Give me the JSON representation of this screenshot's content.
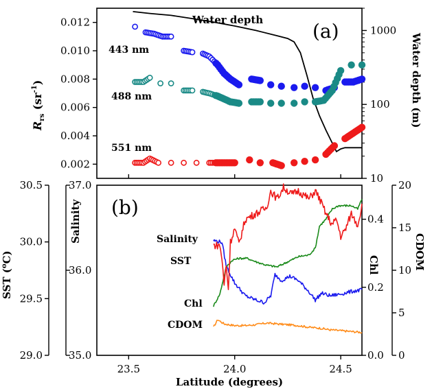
{
  "chart_data": [
    {
      "panel_label": "(a)",
      "type": "scatter",
      "xlabel": "",
      "x_ticks": [
        "23.5",
        "24.0",
        "24.5"
      ],
      "ylabel_left": "R",
      "ylabel_left_sub": "rs",
      "ylabel_left_unit_a": " (sr",
      "ylabel_left_unit_exp": "-1",
      "ylabel_left_unit_b": ")",
      "ylim_left": [
        0.001,
        0.013
      ],
      "y_ticks_left": [
        "0.002",
        "0.004",
        "0.006",
        "0.008",
        "0.010",
        "0.012"
      ],
      "ylabel_right": "Water depth (m)",
      "yscale_right": "log",
      "ylim_right": [
        10,
        2000
      ],
      "y_ticks_right": [
        "10",
        "100",
        "1000"
      ],
      "series_labels": {
        "depth": "Water depth",
        "s443": "443 nm",
        "s488": "488 nm",
        "s551": "551 nm"
      },
      "colors": {
        "s443": "#1a1aee",
        "s488": "#1a8a86",
        "s551": "#ee1a1a",
        "depth": "#000000"
      },
      "series": [
        {
          "id": "s443",
          "name": "443 nm",
          "points": [
            [
              23.53,
              0.0117
            ],
            [
              23.58,
              0.0113
            ],
            [
              23.62,
              0.0112
            ],
            [
              23.66,
              0.011
            ],
            [
              23.7,
              0.011
            ],
            [
              23.76,
              0.01
            ],
            [
              23.8,
              0.0099
            ],
            [
              23.85,
              0.0098
            ],
            [
              23.88,
              0.0096
            ],
            [
              23.92,
              0.009
            ],
            [
              23.95,
              0.0084
            ],
            [
              23.98,
              0.008
            ],
            [
              24.02,
              0.0076
            ],
            [
              24.08,
              0.008
            ],
            [
              24.12,
              0.0079
            ],
            [
              24.17,
              0.0076
            ],
            [
              24.22,
              0.0075
            ],
            [
              24.28,
              0.0074
            ],
            [
              24.33,
              0.0075
            ],
            [
              24.38,
              0.0074
            ],
            [
              24.43,
              0.0072
            ],
            [
              24.47,
              0.0074
            ],
            [
              24.52,
              0.0078
            ],
            [
              24.56,
              0.0078
            ],
            [
              24.6,
              0.008
            ]
          ]
        },
        {
          "id": "s488",
          "name": "488 nm",
          "points": [
            [
              23.53,
              0.0078
            ],
            [
              23.57,
              0.0078
            ],
            [
              23.6,
              0.0081
            ],
            [
              23.65,
              0.0077
            ],
            [
              23.7,
              0.0077
            ],
            [
              23.76,
              0.0072
            ],
            [
              23.8,
              0.0072
            ],
            [
              23.85,
              0.0071
            ],
            [
              23.88,
              0.007
            ],
            [
              23.92,
              0.0068
            ],
            [
              23.95,
              0.0066
            ],
            [
              23.98,
              0.0064
            ],
            [
              24.02,
              0.0063
            ],
            [
              24.08,
              0.0064
            ],
            [
              24.12,
              0.0064
            ],
            [
              24.17,
              0.0063
            ],
            [
              24.22,
              0.0063
            ],
            [
              24.28,
              0.0063
            ],
            [
              24.33,
              0.0064
            ],
            [
              24.38,
              0.0064
            ],
            [
              24.42,
              0.0065
            ],
            [
              24.46,
              0.0072
            ],
            [
              24.5,
              0.0086
            ],
            [
              24.55,
              0.009
            ],
            [
              24.6,
              0.009
            ]
          ]
        },
        {
          "id": "s551",
          "name": "551 nm",
          "points": [
            [
              23.53,
              0.0021
            ],
            [
              23.57,
              0.0021
            ],
            [
              23.6,
              0.0024
            ],
            [
              23.64,
              0.0021
            ],
            [
              23.7,
              0.0021
            ],
            [
              23.76,
              0.0021
            ],
            [
              23.82,
              0.0021
            ],
            [
              23.88,
              0.0021
            ],
            [
              23.92,
              0.0021
            ],
            [
              23.96,
              0.0021
            ],
            [
              24.0,
              0.0021
            ],
            [
              24.07,
              0.0023
            ],
            [
              24.12,
              0.0021
            ],
            [
              24.18,
              0.0021
            ],
            [
              24.22,
              0.0019
            ],
            [
              24.28,
              0.0021
            ],
            [
              24.33,
              0.0022
            ],
            [
              24.38,
              0.0023
            ],
            [
              24.43,
              0.0027
            ],
            [
              24.47,
              0.0033
            ],
            [
              24.52,
              0.0038
            ],
            [
              24.56,
              0.0042
            ],
            [
              24.6,
              0.0046
            ]
          ]
        },
        {
          "id": "depth",
          "name": "Water depth",
          "type": "line",
          "points": [
            [
              23.52,
              1800
            ],
            [
              23.6,
              1700
            ],
            [
              23.7,
              1600
            ],
            [
              23.8,
              1450
            ],
            [
              23.9,
              1300
            ],
            [
              24.0,
              1150
            ],
            [
              24.1,
              1000
            ],
            [
              24.2,
              850
            ],
            [
              24.25,
              780
            ],
            [
              24.28,
              700
            ],
            [
              24.31,
              500
            ],
            [
              24.34,
              250
            ],
            [
              24.37,
              120
            ],
            [
              24.4,
              70
            ],
            [
              24.43,
              45
            ],
            [
              24.46,
              30
            ],
            [
              24.48,
              23
            ],
            [
              24.5,
              25
            ],
            [
              24.52,
              26
            ],
            [
              24.56,
              26
            ],
            [
              24.6,
              26
            ]
          ]
        }
      ]
    },
    {
      "panel_label": "(b)",
      "type": "line",
      "xlabel": "Latitude (degrees)",
      "x_ticks": [
        "23.5",
        "24.0",
        "24.5"
      ],
      "xlim": [
        23.35,
        24.6
      ],
      "axes": {
        "sst": {
          "label": "SST (",
          "label_exp": "o",
          "label_end": "C)",
          "ylim": [
            29.0,
            30.5
          ],
          "ticks": [
            "29.0",
            "29.5",
            "30.0",
            "30.5"
          ]
        },
        "salinity": {
          "label": "Salinity",
          "ylim": [
            35.0,
            37.0
          ],
          "ticks": [
            "35.0",
            "36.0",
            "37.0"
          ]
        },
        "chl": {
          "label": "Chl",
          "ylim": [
            0.0,
            0.5
          ],
          "ticks": [
            "0.0",
            "0.2",
            "0.4"
          ]
        },
        "cdom": {
          "label": "CDOM",
          "ylim": [
            0,
            20
          ],
          "ticks": [
            "0",
            "5",
            "10",
            "15",
            "20"
          ]
        }
      },
      "series_labels": {
        "salinity": "Salinity",
        "sst": "SST",
        "chl": "Chl",
        "cdom": "CDOM"
      },
      "colors": {
        "sst": "#ee1a1a",
        "salinity": "#1a1aee",
        "chl": "#1a8a1a",
        "cdom": "#ff8c1a"
      },
      "series": [
        {
          "id": "sst",
          "axis": "sst",
          "points": [
            [
              23.9,
              29.97
            ],
            [
              23.93,
              29.97
            ],
            [
              23.94,
              29.85
            ],
            [
              23.95,
              29.62
            ],
            [
              23.96,
              29.8
            ],
            [
              23.97,
              29.58
            ],
            [
              23.98,
              30.0
            ],
            [
              24.0,
              30.12
            ],
            [
              24.02,
              29.98
            ],
            [
              24.05,
              30.2
            ],
            [
              24.1,
              30.25
            ],
            [
              24.15,
              30.3
            ],
            [
              24.17,
              30.45
            ],
            [
              24.2,
              30.38
            ],
            [
              24.23,
              30.48
            ],
            [
              24.27,
              30.42
            ],
            [
              24.3,
              30.45
            ],
            [
              24.35,
              30.38
            ],
            [
              24.38,
              30.45
            ],
            [
              24.4,
              30.38
            ],
            [
              24.43,
              30.25
            ],
            [
              24.46,
              30.15
            ],
            [
              24.48,
              30.2
            ],
            [
              24.5,
              30.05
            ],
            [
              24.52,
              30.1
            ],
            [
              24.55,
              30.25
            ],
            [
              24.58,
              30.15
            ],
            [
              24.6,
              30.32
            ]
          ]
        },
        {
          "id": "salinity",
          "axis": "salinity",
          "points": [
            [
              23.9,
              36.35
            ],
            [
              23.94,
              36.33
            ],
            [
              23.96,
              36.05
            ],
            [
              24.0,
              35.85
            ],
            [
              24.05,
              35.7
            ],
            [
              24.1,
              35.65
            ],
            [
              24.14,
              35.62
            ],
            [
              24.17,
              35.7
            ],
            [
              24.19,
              35.95
            ],
            [
              24.22,
              35.88
            ],
            [
              24.26,
              35.93
            ],
            [
              24.3,
              35.88
            ],
            [
              24.35,
              35.75
            ],
            [
              24.38,
              35.65
            ],
            [
              24.41,
              35.73
            ],
            [
              24.45,
              35.7
            ],
            [
              24.5,
              35.72
            ],
            [
              24.55,
              35.75
            ],
            [
              24.6,
              35.77
            ]
          ]
        },
        {
          "id": "chl",
          "axis": "chl",
          "points": [
            [
              23.9,
              0.145
            ],
            [
              23.93,
              0.18
            ],
            [
              23.96,
              0.26
            ],
            [
              23.99,
              0.28
            ],
            [
              24.02,
              0.285
            ],
            [
              24.06,
              0.285
            ],
            [
              24.1,
              0.275
            ],
            [
              24.15,
              0.265
            ],
            [
              24.2,
              0.26
            ],
            [
              24.25,
              0.275
            ],
            [
              24.3,
              0.29
            ],
            [
              24.35,
              0.295
            ],
            [
              24.38,
              0.315
            ],
            [
              24.4,
              0.38
            ],
            [
              24.43,
              0.4
            ],
            [
              24.46,
              0.43
            ],
            [
              24.49,
              0.44
            ],
            [
              24.52,
              0.44
            ],
            [
              24.55,
              0.44
            ],
            [
              24.58,
              0.43
            ],
            [
              24.6,
              0.46
            ]
          ]
        },
        {
          "id": "cdom",
          "axis": "cdom",
          "points": [
            [
              23.9,
              3.3
            ],
            [
              23.92,
              4.2
            ],
            [
              23.95,
              3.7
            ],
            [
              24.0,
              3.5
            ],
            [
              24.05,
              3.5
            ],
            [
              24.1,
              3.6
            ],
            [
              24.15,
              3.8
            ],
            [
              24.2,
              3.7
            ],
            [
              24.25,
              3.6
            ],
            [
              24.3,
              3.5
            ],
            [
              24.35,
              3.3
            ],
            [
              24.4,
              3.2
            ],
            [
              24.45,
              3.0
            ],
            [
              24.5,
              2.9
            ],
            [
              24.55,
              2.8
            ],
            [
              24.6,
              2.7
            ]
          ]
        }
      ]
    }
  ]
}
